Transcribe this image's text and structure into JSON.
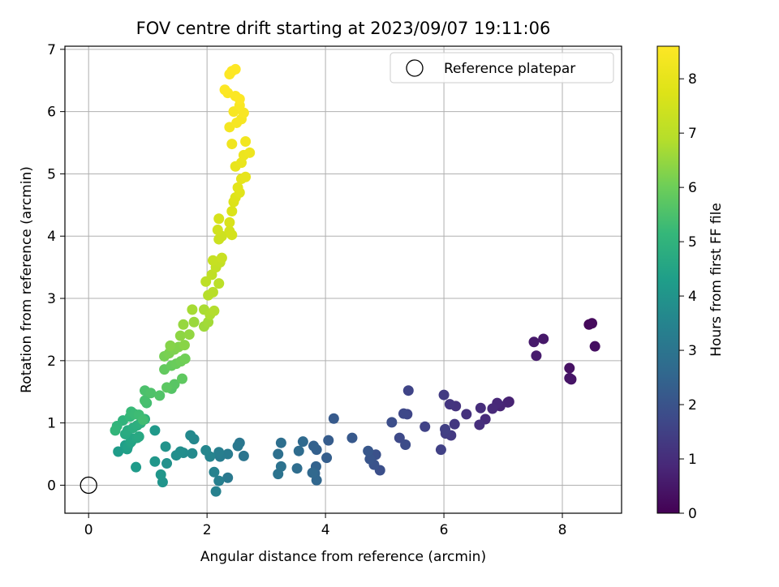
{
  "chart_data": {
    "type": "scatter",
    "title": "FOV centre drift starting at 2023/09/07 19:11:06",
    "xlabel": "Angular distance from reference (arcmin)",
    "ylabel": "Rotation from reference (arcmin)",
    "xlim": [
      -0.4,
      9.0
    ],
    "ylim": [
      -0.45,
      7.05
    ],
    "x_ticks": [
      0,
      2,
      4,
      6,
      8
    ],
    "y_ticks": [
      0,
      1,
      2,
      3,
      4,
      5,
      6,
      7
    ],
    "grid": true,
    "legend": {
      "placement": "top-right",
      "entries": [
        "Reference platepar"
      ]
    },
    "reference_point": {
      "x": 0,
      "y": 0
    },
    "colorbar": {
      "label": "Hours from first FF file",
      "colormap": "viridis",
      "range": [
        0,
        8.6
      ],
      "ticks": [
        0,
        1,
        2,
        3,
        4,
        5,
        6,
        7,
        8
      ]
    },
    "points": [
      {
        "x": 8.45,
        "y": 2.58,
        "c": 0.15
      },
      {
        "x": 8.5,
        "y": 2.6,
        "c": 0.2
      },
      {
        "x": 8.55,
        "y": 2.23,
        "c": 0.3
      },
      {
        "x": 8.12,
        "y": 1.88,
        "c": 0.35
      },
      {
        "x": 8.15,
        "y": 1.7,
        "c": 0.4
      },
      {
        "x": 8.12,
        "y": 1.72,
        "c": 0.45
      },
      {
        "x": 7.68,
        "y": 2.35,
        "c": 0.5
      },
      {
        "x": 7.52,
        "y": 2.3,
        "c": 0.55
      },
      {
        "x": 7.56,
        "y": 2.08,
        "c": 0.6
      },
      {
        "x": 7.1,
        "y": 1.34,
        "c": 0.7
      },
      {
        "x": 7.08,
        "y": 1.33,
        "c": 0.75
      },
      {
        "x": 6.95,
        "y": 1.27,
        "c": 0.8
      },
      {
        "x": 6.9,
        "y": 1.32,
        "c": 0.85
      },
      {
        "x": 6.82,
        "y": 1.23,
        "c": 0.9
      },
      {
        "x": 6.7,
        "y": 1.06,
        "c": 0.95
      },
      {
        "x": 6.62,
        "y": 1.24,
        "c": 1.0
      },
      {
        "x": 6.6,
        "y": 0.97,
        "c": 1.05
      },
      {
        "x": 6.38,
        "y": 1.14,
        "c": 1.1
      },
      {
        "x": 6.2,
        "y": 1.27,
        "c": 1.15
      },
      {
        "x": 6.1,
        "y": 1.3,
        "c": 1.2
      },
      {
        "x": 6.18,
        "y": 0.98,
        "c": 1.25
      },
      {
        "x": 6.12,
        "y": 0.8,
        "c": 1.3
      },
      {
        "x": 6.0,
        "y": 1.45,
        "c": 1.35
      },
      {
        "x": 6.03,
        "y": 0.83,
        "c": 1.4
      },
      {
        "x": 6.02,
        "y": 0.9,
        "c": 1.45
      },
      {
        "x": 5.95,
        "y": 0.57,
        "c": 1.5
      },
      {
        "x": 5.68,
        "y": 0.94,
        "c": 1.55
      },
      {
        "x": 5.4,
        "y": 1.52,
        "c": 1.6
      },
      {
        "x": 5.38,
        "y": 1.14,
        "c": 1.65
      },
      {
        "x": 5.32,
        "y": 1.15,
        "c": 1.7
      },
      {
        "x": 5.25,
        "y": 0.76,
        "c": 1.75
      },
      {
        "x": 5.35,
        "y": 0.65,
        "c": 1.8
      },
      {
        "x": 5.12,
        "y": 1.01,
        "c": 1.85
      },
      {
        "x": 4.92,
        "y": 0.24,
        "c": 1.9
      },
      {
        "x": 4.85,
        "y": 0.49,
        "c": 1.95
      },
      {
        "x": 4.82,
        "y": 0.33,
        "c": 2.0
      },
      {
        "x": 4.75,
        "y": 0.42,
        "c": 2.05
      },
      {
        "x": 4.72,
        "y": 0.55,
        "c": 2.1
      },
      {
        "x": 4.45,
        "y": 0.76,
        "c": 2.15
      },
      {
        "x": 4.14,
        "y": 1.07,
        "c": 2.2
      },
      {
        "x": 4.05,
        "y": 0.72,
        "c": 2.25
      },
      {
        "x": 4.02,
        "y": 0.44,
        "c": 2.3
      },
      {
        "x": 3.85,
        "y": 0.57,
        "c": 2.35
      },
      {
        "x": 3.8,
        "y": 0.63,
        "c": 2.4
      },
      {
        "x": 3.84,
        "y": 0.3,
        "c": 2.45
      },
      {
        "x": 3.82,
        "y": 0.19,
        "c": 2.5
      },
      {
        "x": 3.85,
        "y": 0.08,
        "c": 2.55
      },
      {
        "x": 3.78,
        "y": 0.2,
        "c": 2.6
      },
      {
        "x": 3.62,
        "y": 0.7,
        "c": 2.65
      },
      {
        "x": 3.55,
        "y": 0.55,
        "c": 2.7
      },
      {
        "x": 3.52,
        "y": 0.27,
        "c": 2.75
      },
      {
        "x": 3.25,
        "y": 0.68,
        "c": 2.8
      },
      {
        "x": 3.2,
        "y": 0.5,
        "c": 2.85
      },
      {
        "x": 3.25,
        "y": 0.3,
        "c": 2.9
      },
      {
        "x": 3.2,
        "y": 0.18,
        "c": 2.95
      },
      {
        "x": 2.62,
        "y": 0.47,
        "c": 3.0
      },
      {
        "x": 2.55,
        "y": 0.68,
        "c": 3.05
      },
      {
        "x": 2.52,
        "y": 0.63,
        "c": 3.1
      },
      {
        "x": 2.35,
        "y": 0.12,
        "c": 3.15
      },
      {
        "x": 2.35,
        "y": 0.5,
        "c": 3.2
      },
      {
        "x": 2.22,
        "y": 0.46,
        "c": 3.25
      },
      {
        "x": 2.2,
        "y": 0.53,
        "c": 3.3
      },
      {
        "x": 2.2,
        "y": 0.07,
        "c": 3.35
      },
      {
        "x": 2.15,
        "y": -0.1,
        "c": 3.4
      },
      {
        "x": 2.12,
        "y": 0.21,
        "c": 3.45
      },
      {
        "x": 2.05,
        "y": 0.46,
        "c": 3.5
      },
      {
        "x": 1.98,
        "y": 0.56,
        "c": 3.55
      },
      {
        "x": 1.78,
        "y": 0.74,
        "c": 3.6
      },
      {
        "x": 1.72,
        "y": 0.8,
        "c": 3.65
      },
      {
        "x": 1.75,
        "y": 0.51,
        "c": 3.7
      },
      {
        "x": 1.6,
        "y": 0.52,
        "c": 3.75
      },
      {
        "x": 1.55,
        "y": 0.54,
        "c": 3.8
      },
      {
        "x": 1.48,
        "y": 0.48,
        "c": 3.85
      },
      {
        "x": 1.32,
        "y": 0.35,
        "c": 3.9
      },
      {
        "x": 1.3,
        "y": 0.62,
        "c": 3.95
      },
      {
        "x": 1.25,
        "y": 0.05,
        "c": 4.0
      },
      {
        "x": 1.22,
        "y": 0.17,
        "c": 4.05
      },
      {
        "x": 1.12,
        "y": 0.38,
        "c": 4.1
      },
      {
        "x": 1.12,
        "y": 0.88,
        "c": 4.15
      },
      {
        "x": 0.8,
        "y": 0.29,
        "c": 4.2
      },
      {
        "x": 0.5,
        "y": 0.54,
        "c": 4.25
      },
      {
        "x": 0.62,
        "y": 0.64,
        "c": 4.3
      },
      {
        "x": 0.65,
        "y": 0.58,
        "c": 4.35
      },
      {
        "x": 0.66,
        "y": 0.62,
        "c": 4.4
      },
      {
        "x": 0.7,
        "y": 0.68,
        "c": 4.45
      },
      {
        "x": 0.72,
        "y": 0.7,
        "c": 4.5
      },
      {
        "x": 0.74,
        "y": 0.75,
        "c": 4.55
      },
      {
        "x": 0.82,
        "y": 0.76,
        "c": 4.6
      },
      {
        "x": 0.85,
        "y": 0.78,
        "c": 4.65
      },
      {
        "x": 0.62,
        "y": 0.82,
        "c": 4.7
      },
      {
        "x": 0.66,
        "y": 0.88,
        "c": 4.75
      },
      {
        "x": 0.75,
        "y": 0.92,
        "c": 4.8
      },
      {
        "x": 0.82,
        "y": 0.96,
        "c": 4.85
      },
      {
        "x": 0.88,
        "y": 1.0,
        "c": 4.9
      },
      {
        "x": 0.95,
        "y": 1.06,
        "c": 4.95
      },
      {
        "x": 0.58,
        "y": 1.04,
        "c": 5.0
      },
      {
        "x": 0.48,
        "y": 0.95,
        "c": 5.05
      },
      {
        "x": 0.45,
        "y": 0.88,
        "c": 5.1
      },
      {
        "x": 0.7,
        "y": 1.1,
        "c": 5.15
      },
      {
        "x": 0.72,
        "y": 1.18,
        "c": 5.2
      },
      {
        "x": 0.78,
        "y": 1.14,
        "c": 5.25
      },
      {
        "x": 0.85,
        "y": 1.13,
        "c": 5.3
      },
      {
        "x": 0.92,
        "y": 1.05,
        "c": 5.35
      },
      {
        "x": 0.98,
        "y": 1.32,
        "c": 5.4
      },
      {
        "x": 0.95,
        "y": 1.36,
        "c": 5.45
      },
      {
        "x": 0.95,
        "y": 1.52,
        "c": 5.5
      },
      {
        "x": 1.05,
        "y": 1.48,
        "c": 5.55
      },
      {
        "x": 1.2,
        "y": 1.44,
        "c": 5.6
      },
      {
        "x": 1.4,
        "y": 1.55,
        "c": 5.65
      },
      {
        "x": 1.45,
        "y": 1.62,
        "c": 5.7
      },
      {
        "x": 1.32,
        "y": 1.57,
        "c": 5.75
      },
      {
        "x": 1.58,
        "y": 1.71,
        "c": 5.8
      },
      {
        "x": 1.28,
        "y": 1.86,
        "c": 5.85
      },
      {
        "x": 1.4,
        "y": 1.92,
        "c": 5.9
      },
      {
        "x": 1.48,
        "y": 1.95,
        "c": 5.95
      },
      {
        "x": 1.56,
        "y": 1.99,
        "c": 6.0
      },
      {
        "x": 1.63,
        "y": 2.03,
        "c": 6.05
      },
      {
        "x": 1.28,
        "y": 2.07,
        "c": 6.1
      },
      {
        "x": 1.36,
        "y": 2.12,
        "c": 6.15
      },
      {
        "x": 1.45,
        "y": 2.18,
        "c": 6.2
      },
      {
        "x": 1.52,
        "y": 2.22,
        "c": 6.25
      },
      {
        "x": 1.38,
        "y": 2.24,
        "c": 6.3
      },
      {
        "x": 1.62,
        "y": 2.25,
        "c": 6.35
      },
      {
        "x": 1.55,
        "y": 2.4,
        "c": 6.4
      },
      {
        "x": 1.7,
        "y": 2.42,
        "c": 6.45
      },
      {
        "x": 1.6,
        "y": 2.58,
        "c": 6.5
      },
      {
        "x": 1.78,
        "y": 2.62,
        "c": 6.55
      },
      {
        "x": 1.95,
        "y": 2.55,
        "c": 6.6
      },
      {
        "x": 2.02,
        "y": 2.62,
        "c": 6.65
      },
      {
        "x": 1.75,
        "y": 2.82,
        "c": 6.7
      },
      {
        "x": 1.95,
        "y": 2.82,
        "c": 6.75
      },
      {
        "x": 2.05,
        "y": 2.74,
        "c": 6.8
      },
      {
        "x": 2.12,
        "y": 2.8,
        "c": 6.85
      },
      {
        "x": 2.02,
        "y": 3.05,
        "c": 6.9
      },
      {
        "x": 2.1,
        "y": 3.1,
        "c": 6.95
      },
      {
        "x": 2.2,
        "y": 3.24,
        "c": 7.0
      },
      {
        "x": 1.98,
        "y": 3.27,
        "c": 7.05
      },
      {
        "x": 2.08,
        "y": 3.38,
        "c": 7.1
      },
      {
        "x": 2.15,
        "y": 3.5,
        "c": 7.15
      },
      {
        "x": 2.22,
        "y": 3.58,
        "c": 7.2
      },
      {
        "x": 2.1,
        "y": 3.61,
        "c": 7.25
      },
      {
        "x": 2.25,
        "y": 3.65,
        "c": 7.3
      },
      {
        "x": 2.2,
        "y": 3.95,
        "c": 7.35
      },
      {
        "x": 2.25,
        "y": 4.0,
        "c": 7.4
      },
      {
        "x": 2.18,
        "y": 4.1,
        "c": 7.45
      },
      {
        "x": 2.38,
        "y": 4.08,
        "c": 7.5
      },
      {
        "x": 2.42,
        "y": 4.02,
        "c": 7.55
      },
      {
        "x": 2.2,
        "y": 4.28,
        "c": 7.6
      },
      {
        "x": 2.38,
        "y": 4.22,
        "c": 7.65
      },
      {
        "x": 2.42,
        "y": 4.4,
        "c": 7.7
      },
      {
        "x": 2.45,
        "y": 4.55,
        "c": 7.75
      },
      {
        "x": 2.48,
        "y": 4.62,
        "c": 7.8
      },
      {
        "x": 2.55,
        "y": 4.7,
        "c": 7.85
      },
      {
        "x": 2.52,
        "y": 4.78,
        "c": 7.9
      },
      {
        "x": 2.58,
        "y": 4.92,
        "c": 7.95
      },
      {
        "x": 2.65,
        "y": 4.95,
        "c": 8.0
      },
      {
        "x": 2.48,
        "y": 5.12,
        "c": 8.05
      },
      {
        "x": 2.58,
        "y": 5.18,
        "c": 8.1
      },
      {
        "x": 2.62,
        "y": 5.3,
        "c": 8.15
      },
      {
        "x": 2.72,
        "y": 5.34,
        "c": 8.2
      },
      {
        "x": 2.42,
        "y": 5.48,
        "c": 8.25
      },
      {
        "x": 2.65,
        "y": 5.52,
        "c": 8.3
      },
      {
        "x": 2.38,
        "y": 5.75,
        "c": 8.35
      },
      {
        "x": 2.5,
        "y": 5.82,
        "c": 8.4
      },
      {
        "x": 2.58,
        "y": 5.88,
        "c": 8.42
      },
      {
        "x": 2.45,
        "y": 6.0,
        "c": 8.45
      },
      {
        "x": 2.62,
        "y": 5.98,
        "c": 8.47
      },
      {
        "x": 2.55,
        "y": 6.1,
        "c": 8.5
      },
      {
        "x": 2.35,
        "y": 6.3,
        "c": 8.52
      },
      {
        "x": 2.48,
        "y": 6.25,
        "c": 8.54
      },
      {
        "x": 2.55,
        "y": 6.2,
        "c": 8.56
      },
      {
        "x": 2.3,
        "y": 6.35,
        "c": 8.57
      },
      {
        "x": 2.38,
        "y": 6.6,
        "c": 8.58
      },
      {
        "x": 2.42,
        "y": 6.65,
        "c": 8.59
      },
      {
        "x": 2.48,
        "y": 6.68,
        "c": 8.6
      }
    ]
  }
}
